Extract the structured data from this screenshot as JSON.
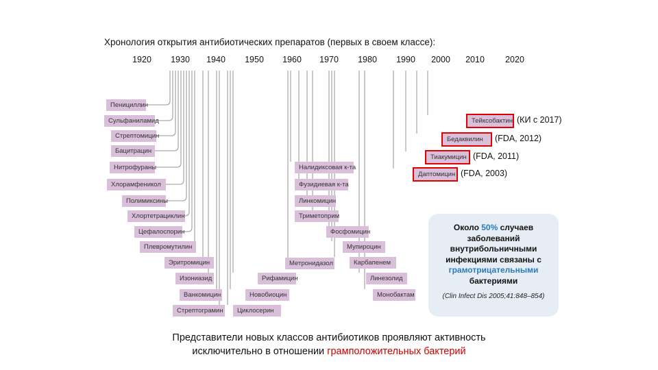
{
  "title": "Хронология открытия антибиотических препаратов (первых в своем классе):",
  "years": [
    "1920",
    "1930",
    "1940",
    "1950",
    "1960",
    "1970",
    "1980",
    "1990",
    "2000",
    "2010",
    "2020"
  ],
  "drugs": [
    {
      "name": "Пенициллин"
    },
    {
      "name": "Сульфаниламид"
    },
    {
      "name": "Стрептомицин"
    },
    {
      "name": "Бацитрацин"
    },
    {
      "name": "Нитрофураны"
    },
    {
      "name": "Хлорамфеникол"
    },
    {
      "name": "Полимиксины"
    },
    {
      "name": "Хлортетрациклин"
    },
    {
      "name": "Цефалоспорин"
    },
    {
      "name": "Плевромутилин"
    },
    {
      "name": "Эритромицин"
    },
    {
      "name": "Изониазид"
    },
    {
      "name": "Ванкомицин"
    },
    {
      "name": "Стрептограмин"
    },
    {
      "name": "Циклосерин"
    },
    {
      "name": "Новобиоцин"
    },
    {
      "name": "Рифамицин"
    },
    {
      "name": "Метронидазол"
    },
    {
      "name": "Налидиксовая к-та"
    },
    {
      "name": "Фузидиевая к-та"
    },
    {
      "name": "Линкомицин"
    },
    {
      "name": "Триметоприм"
    },
    {
      "name": "Фосфомицин"
    },
    {
      "name": "Мупироцин"
    },
    {
      "name": "Карбапенем"
    },
    {
      "name": "Линезолид"
    },
    {
      "name": "Монобактам"
    },
    {
      "name": "Даптомицин",
      "note": "(FDA, 2003)",
      "highlight": true
    },
    {
      "name": "Тиакумицин",
      "note": "(FDA, 2011)",
      "highlight": true
    },
    {
      "name": "Бедаквилин",
      "note": "(FDA, 2012)",
      "highlight": true
    },
    {
      "name": "Тейксобактин",
      "note": "(КИ с 2017)",
      "highlight": true
    }
  ],
  "infobox": {
    "line1": "Около ",
    "percent": "50%",
    "line2": " случаев заболеваний внутрибольничными инфекциями связаны с ",
    "accent": "грамотрицательными",
    "line3": " бактериями",
    "citation": "(Clin Infect Dis 2005;41:848–854)"
  },
  "bottom": {
    "line1": "Представители новых классов антибиотиков проявляют активность",
    "line2_prefix": "исключительно в отношении ",
    "line2_red": "грамположительных бактерий"
  },
  "colors": {
    "pill": "#d9bfd9",
    "highlight": "#e00000",
    "accent": "#2b7bb9",
    "box": "#e6edf5"
  }
}
